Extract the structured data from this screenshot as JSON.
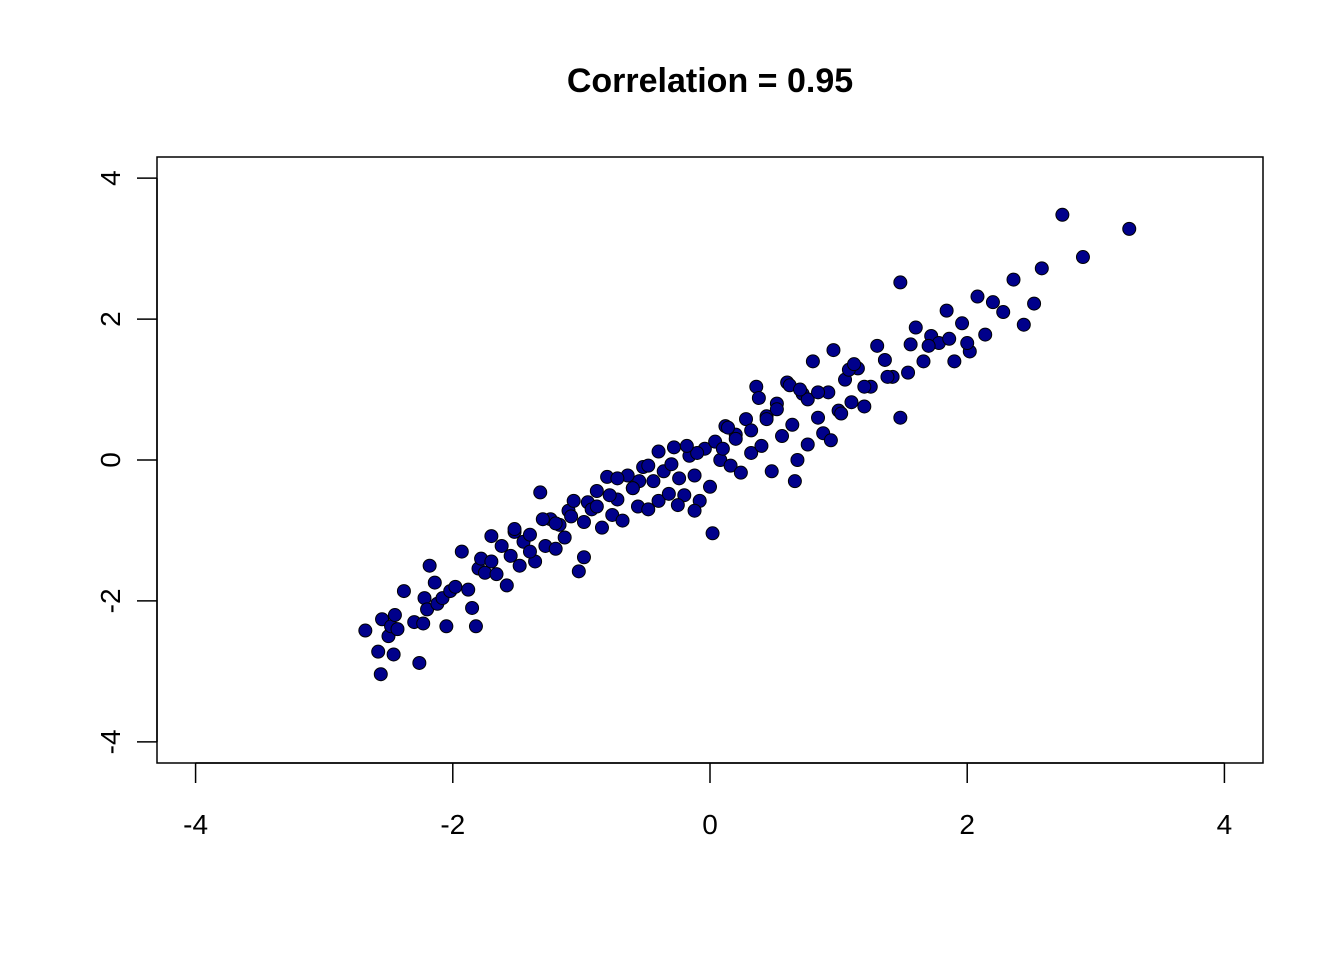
{
  "chart_data": {
    "type": "scatter",
    "title": "Correlation = 0.95",
    "xlabel": "",
    "ylabel": "",
    "xlim": [
      -4.3,
      4.3
    ],
    "ylim": [
      -4.3,
      4.3
    ],
    "x_ticks": [
      -4,
      -2,
      0,
      2,
      4
    ],
    "y_ticks": [
      -4,
      -2,
      0,
      2,
      4
    ],
    "x_tick_labels": [
      "-4",
      "-2",
      "0",
      "2",
      "4"
    ],
    "y_tick_labels": [
      "-4",
      "-2",
      "0",
      "2",
      "4"
    ],
    "grid": false,
    "point_fill": "#00008B",
    "point_stroke": "#000000",
    "series": [
      {
        "x": [
          -2.68,
          -2.58,
          -2.56,
          -2.55,
          -2.5,
          -2.48,
          -2.46,
          -2.45,
          -2.43,
          -2.38,
          -2.3,
          -2.26,
          -2.23,
          -2.22,
          -2.2,
          -2.18,
          -2.14,
          -2.12,
          -2.08,
          -2.05,
          -2.02,
          -1.98,
          -1.93,
          -1.88,
          -1.85,
          -1.82,
          -1.8,
          -1.78,
          -1.75,
          -1.7,
          -1.66,
          -1.62,
          -1.58,
          -1.55,
          -1.52,
          -1.48,
          -1.45,
          -1.4,
          -1.36,
          -1.32,
          -1.28,
          -1.24,
          -1.2,
          -1.17,
          -1.13,
          -1.1,
          -1.06,
          -1.02,
          -0.98,
          -0.95,
          -0.92,
          -0.88,
          -0.84,
          -0.8,
          -0.76,
          -0.72,
          -0.68,
          -0.64,
          -0.6,
          -0.56,
          -0.52,
          -0.48,
          -0.44,
          -0.4,
          -0.36,
          -0.32,
          -0.28,
          -0.24,
          -0.2,
          -0.16,
          -0.12,
          -0.08,
          -0.04,
          0.0,
          0.04,
          0.08,
          0.12,
          0.16,
          0.2,
          0.24,
          0.28,
          0.32,
          0.36,
          0.4,
          0.44,
          0.48,
          0.52,
          0.56,
          0.6,
          0.64,
          0.68,
          0.72,
          0.76,
          0.8,
          0.84,
          0.88,
          0.92,
          0.96,
          1.0,
          1.05,
          1.1,
          1.15,
          1.2,
          1.25,
          1.3,
          1.36,
          1.42,
          1.48,
          1.54,
          1.6,
          1.66,
          1.72,
          1.78,
          1.84,
          1.9,
          1.96,
          2.02,
          2.08,
          2.14,
          2.2,
          2.28,
          2.36,
          2.44,
          2.52,
          2.58,
          2.74,
          2.9,
          3.26,
          -1.3,
          -0.98,
          -0.72,
          -0.4,
          -0.12,
          0.02,
          0.32,
          0.62,
          0.94,
          1.2,
          1.48,
          -1.52,
          -1.2,
          -0.88,
          -0.55,
          -0.25,
          0.1,
          0.44,
          0.76,
          1.08,
          1.38,
          1.7,
          2.0,
          -0.6,
          -0.3,
          0.2,
          0.52,
          0.84,
          -0.1,
          0.66,
          1.02,
          -1.7,
          -1.4,
          -1.08,
          -0.78,
          -0.48,
          -0.18,
          0.14,
          0.38,
          0.7,
          1.12,
          1.56,
          1.86
        ],
        "y": [
          -2.42,
          -2.72,
          -3.04,
          -2.26,
          -2.5,
          -2.36,
          -2.76,
          -2.2,
          -2.4,
          -1.86,
          -2.3,
          -2.88,
          -2.32,
          -1.96,
          -2.12,
          -1.5,
          -1.74,
          -2.04,
          -1.96,
          -2.36,
          -1.86,
          -1.8,
          -1.3,
          -1.84,
          -2.1,
          -2.36,
          -1.54,
          -1.4,
          -1.6,
          -1.44,
          -1.62,
          -1.22,
          -1.78,
          -1.36,
          -1.02,
          -1.5,
          -1.16,
          -1.06,
          -1.44,
          -0.46,
          -1.22,
          -0.84,
          -1.26,
          -0.92,
          -1.1,
          -0.72,
          -0.58,
          -1.58,
          -0.88,
          -0.6,
          -0.7,
          -0.44,
          -0.96,
          -0.24,
          -0.78,
          -0.56,
          -0.86,
          -0.22,
          -0.4,
          -0.66,
          -0.1,
          -0.7,
          -0.3,
          -0.58,
          -0.16,
          -0.48,
          0.18,
          -0.26,
          -0.5,
          0.06,
          -0.22,
          -0.58,
          0.16,
          -0.38,
          0.26,
          0.0,
          0.48,
          -0.08,
          0.36,
          -0.18,
          0.58,
          0.1,
          1.04,
          0.2,
          0.62,
          -0.16,
          0.8,
          0.34,
          1.1,
          0.5,
          0.0,
          0.94,
          0.22,
          1.4,
          0.6,
          0.38,
          0.96,
          1.56,
          0.7,
          1.14,
          0.82,
          1.3,
          0.76,
          1.04,
          1.62,
          1.42,
          1.18,
          2.52,
          1.24,
          1.88,
          1.4,
          1.76,
          1.66,
          2.12,
          1.4,
          1.94,
          1.54,
          2.32,
          1.78,
          2.24,
          2.1,
          2.56,
          1.92,
          2.22,
          2.72,
          3.48,
          2.88,
          3.28,
          -0.84,
          -1.38,
          -0.26,
          0.12,
          -0.72,
          -1.04,
          0.42,
          1.06,
          0.28,
          1.04,
          0.6,
          -0.98,
          -0.9,
          -0.66,
          -0.3,
          -0.64,
          0.16,
          0.58,
          0.86,
          1.28,
          1.18,
          1.62,
          1.66,
          -0.4,
          -0.06,
          0.3,
          0.72,
          0.96,
          0.1,
          -0.3,
          0.66,
          -1.08,
          -1.3,
          -0.8,
          -0.5,
          -0.08,
          0.2,
          0.46,
          0.88,
          1.0,
          1.36,
          1.64,
          1.72
        ]
      }
    ]
  }
}
